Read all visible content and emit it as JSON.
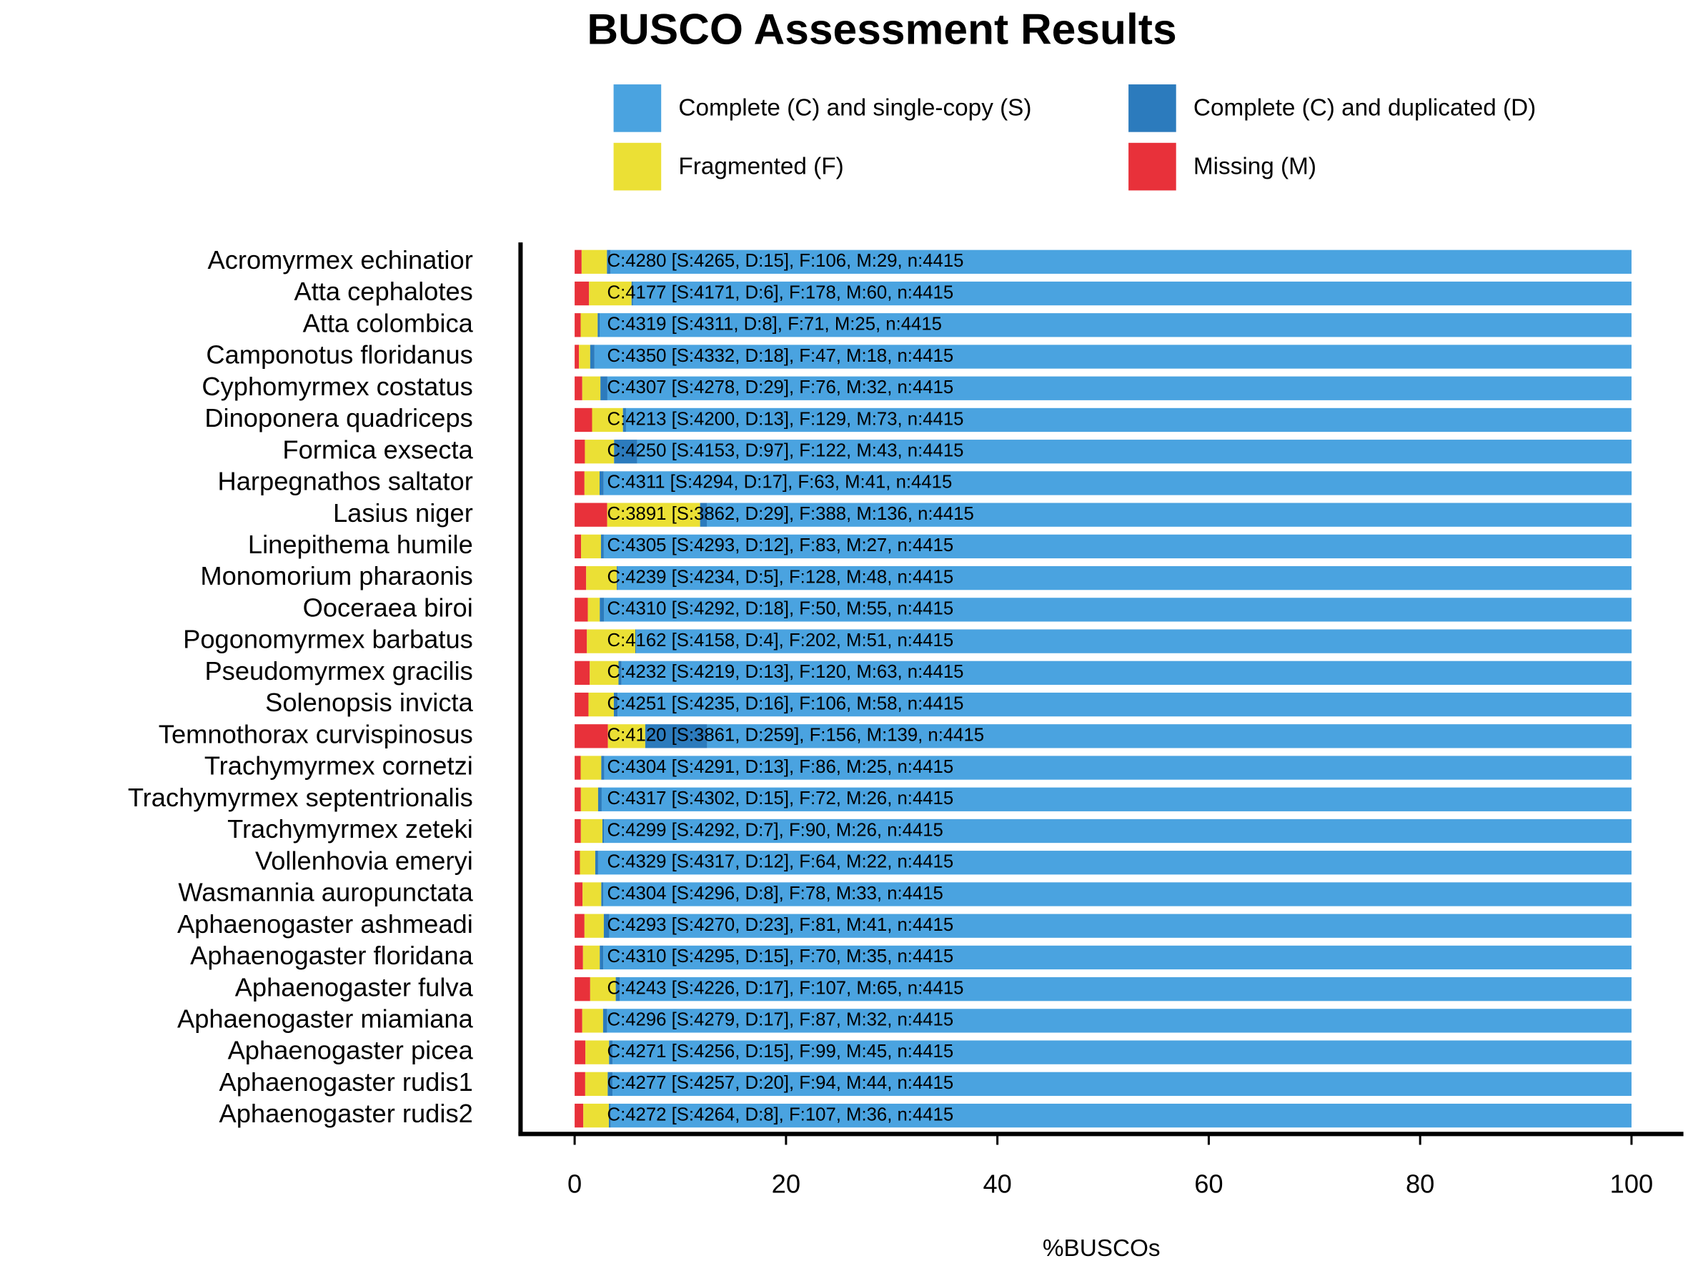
{
  "chart_data": {
    "type": "stacked_barh",
    "title": "BUSCO Assessment Results",
    "x_label": "%BUSCOs",
    "categories": [
      "Acromyrmex echinatior",
      "Atta cephalotes",
      "Atta colombica",
      "Camponotus floridanus",
      "Cyphomyrmex costatus",
      "Dinoponera quadriceps",
      "Formica exsecta",
      "Harpegnathos saltator",
      "Lasius niger",
      "Linepithema humile",
      "Monomorium pharaonis",
      "Ooceraea biroi",
      "Pogonomyrmex barbatus",
      "Pseudomyrmex gracilis",
      "Solenopsis invicta",
      "Temnothorax curvispinosus",
      "Trachymyrmex cornetzi",
      "Trachymyrmex septentrionalis",
      "Trachymyrmex zeteki",
      "Vollenhovia emeryi",
      "Wasmannia auropunctata",
      "Aphaenogaster ashmeadi",
      "Aphaenogaster floridana",
      "Aphaenogaster fulva",
      "Aphaenogaster miamiana",
      "Aphaenogaster picea",
      "Aphaenogaster rudis1",
      "Aphaenogaster rudis2"
    ],
    "series": [
      {
        "name": "Complete (C) and single-copy (S)",
        "color": "#4aa3e0",
        "values": [
          96.6,
          94.47,
          97.64,
          98.12,
          96.9,
          95.13,
          94.07,
          97.26,
          87.47,
          97.24,
          95.9,
          97.21,
          94.18,
          95.56,
          95.92,
          87.45,
          97.19,
          97.44,
          97.21,
          97.78,
          97.3,
          96.72,
          97.28,
          95.72,
          96.92,
          96.4,
          96.42,
          96.58
        ]
      },
      {
        "name": "Complete (C) and duplicated (D)",
        "color": "#2c7bbd",
        "values": [
          0.34,
          0.14,
          0.18,
          0.41,
          0.66,
          0.29,
          2.2,
          0.39,
          0.66,
          0.27,
          0.11,
          0.41,
          0.09,
          0.29,
          0.36,
          5.87,
          0.29,
          0.34,
          0.16,
          0.27,
          0.18,
          0.52,
          0.34,
          0.39,
          0.39,
          0.34,
          0.45,
          0.18
        ]
      },
      {
        "name": "Fragmented (F)",
        "color": "#ebe035",
        "values": [
          2.4,
          4.03,
          1.61,
          1.06,
          1.72,
          2.92,
          2.76,
          1.43,
          8.79,
          1.88,
          2.9,
          1.13,
          4.58,
          2.72,
          2.4,
          3.53,
          1.95,
          1.63,
          2.04,
          1.45,
          1.77,
          1.83,
          1.59,
          2.42,
          1.97,
          2.24,
          2.13,
          2.42
        ]
      },
      {
        "name": "Missing (M)",
        "color": "#e8313a",
        "values": [
          0.66,
          1.36,
          0.57,
          0.41,
          0.72,
          1.65,
          0.97,
          0.93,
          3.08,
          0.61,
          1.09,
          1.25,
          1.16,
          1.43,
          1.31,
          3.15,
          0.57,
          0.59,
          0.59,
          0.5,
          0.75,
          0.93,
          0.79,
          1.47,
          0.72,
          1.02,
          1.0,
          0.82
        ]
      }
    ],
    "bar_labels": [
      "C:4280 [S:4265, D:15], F:106, M:29, n:4415",
      "C:4177 [S:4171, D:6], F:178, M:60, n:4415",
      "C:4319 [S:4311, D:8], F:71, M:25, n:4415",
      "C:4350 [S:4332, D:18], F:47, M:18, n:4415",
      "C:4307 [S:4278, D:29], F:76, M:32, n:4415",
      "C:4213 [S:4200, D:13], F:129, M:73, n:4415",
      "C:4250 [S:4153, D:97], F:122, M:43, n:4415",
      "C:4311 [S:4294, D:17], F:63, M:41, n:4415",
      "C:3891 [S:3862, D:29], F:388, M:136, n:4415",
      "C:4305 [S:4293, D:12], F:83, M:27, n:4415",
      "C:4239 [S:4234, D:5], F:128, M:48, n:4415",
      "C:4310 [S:4292, D:18], F:50, M:55, n:4415",
      "C:4162 [S:4158, D:4], F:202, M:51, n:4415",
      "C:4232 [S:4219, D:13], F:120, M:63, n:4415",
      "C:4251 [S:4235, D:16], F:106, M:58, n:4415",
      "C:4120 [S:3861, D:259], F:156, M:139, n:4415",
      "C:4304 [S:4291, D:13], F:86, M:25, n:4415",
      "C:4317 [S:4302, D:15], F:72, M:26, n:4415",
      "C:4299 [S:4292, D:7], F:90, M:26, n:4415",
      "C:4329 [S:4317, D:12], F:64, M:22, n:4415",
      "C:4304 [S:4296, D:8], F:78, M:33, n:4415",
      "C:4293 [S:4270, D:23], F:81, M:41, n:4415",
      "C:4310 [S:4295, D:15], F:70, M:35, n:4415",
      "C:4243 [S:4226, D:17], F:107, M:65, n:4415",
      "C:4296 [S:4279, D:17], F:87, M:32, n:4415",
      "C:4271 [S:4256, D:15], F:99, M:45, n:4415",
      "C:4277 [S:4257, D:20], F:94, M:44, n:4415",
      "C:4272 [S:4264, D:8], F:107, M:36, n:4415"
    ],
    "xlim": [
      0,
      100
    ],
    "xticks": [
      0,
      20,
      40,
      60,
      80,
      100
    ]
  }
}
